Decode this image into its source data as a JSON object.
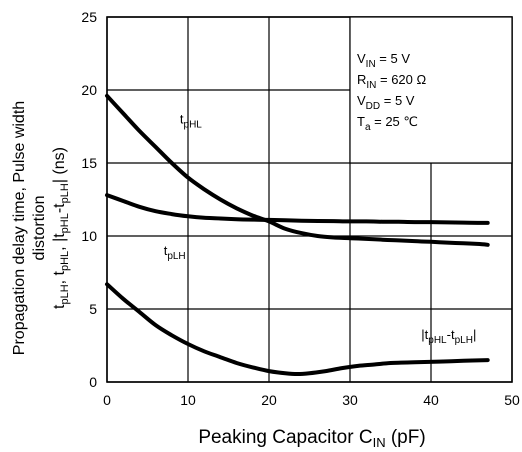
{
  "chart_data": {
    "type": "line",
    "xlabel": {
      "main": "Peaking Capacitor  C",
      "sub": "IN",
      "tail": "  (pF)"
    },
    "ylabel": {
      "line1": "Propagation delay time, Pulse width",
      "line2": "distortion"
    },
    "xlim": [
      0,
      50
    ],
    "ylim": [
      0,
      25
    ],
    "xticks": [
      0,
      10,
      20,
      30,
      40,
      50
    ],
    "yticks": [
      0,
      5,
      10,
      15,
      20,
      25
    ],
    "grid": true,
    "conditions": [
      {
        "main": "V",
        "sub": "IN",
        "tail": " = 5 V"
      },
      {
        "main": "R",
        "sub": "IN",
        "tail": " = 620 Ω"
      },
      {
        "main": "V",
        "sub": "DD",
        "tail": " = 5 V"
      },
      {
        "main": "T",
        "sub": "a",
        "tail": " = 25 ℃"
      }
    ],
    "series": [
      {
        "name": "tpHL",
        "label": {
          "main": "t",
          "sub": "pHL"
        },
        "x": [
          0,
          2,
          4,
          6,
          8,
          10,
          12,
          14,
          16,
          18,
          20,
          22,
          24,
          26,
          28,
          30,
          32,
          34,
          36,
          38,
          40,
          42,
          44,
          46,
          47
        ],
        "y": [
          19.6,
          18.4,
          17.2,
          16.1,
          15.0,
          14.0,
          13.2,
          12.5,
          11.9,
          11.4,
          11.0,
          10.5,
          10.2,
          10.0,
          9.9,
          9.85,
          9.8,
          9.75,
          9.7,
          9.65,
          9.6,
          9.55,
          9.5,
          9.45,
          9.4
        ]
      },
      {
        "name": "tpLH",
        "label": {
          "main": "t",
          "sub": "pLH"
        },
        "x": [
          0,
          2,
          4,
          6,
          8,
          10,
          12,
          14,
          16,
          18,
          20,
          22,
          24,
          26,
          28,
          30,
          32,
          34,
          36,
          38,
          40,
          42,
          44,
          46,
          47
        ],
        "y": [
          12.8,
          12.4,
          12.0,
          11.7,
          11.5,
          11.35,
          11.25,
          11.2,
          11.15,
          11.12,
          11.1,
          11.08,
          11.05,
          11.03,
          11.02,
          11.0,
          11.0,
          10.98,
          10.97,
          10.95,
          10.95,
          10.93,
          10.92,
          10.9,
          10.9
        ]
      },
      {
        "name": "|tpHL-tpLH|",
        "label": {
          "pre": "|t",
          "sub1": "pHL",
          "mid": "-t",
          "sub2": "pLH",
          "post": "|"
        },
        "x": [
          0,
          2,
          4,
          6,
          8,
          10,
          12,
          14,
          16,
          18,
          20,
          22,
          23.5,
          25,
          27,
          29,
          31,
          33,
          35,
          38,
          41,
          44,
          47
        ],
        "y": [
          6.7,
          5.7,
          4.8,
          3.9,
          3.2,
          2.6,
          2.1,
          1.7,
          1.3,
          1.0,
          0.75,
          0.6,
          0.55,
          0.6,
          0.75,
          0.95,
          1.1,
          1.2,
          1.3,
          1.35,
          1.4,
          1.45,
          1.5
        ]
      }
    ]
  }
}
